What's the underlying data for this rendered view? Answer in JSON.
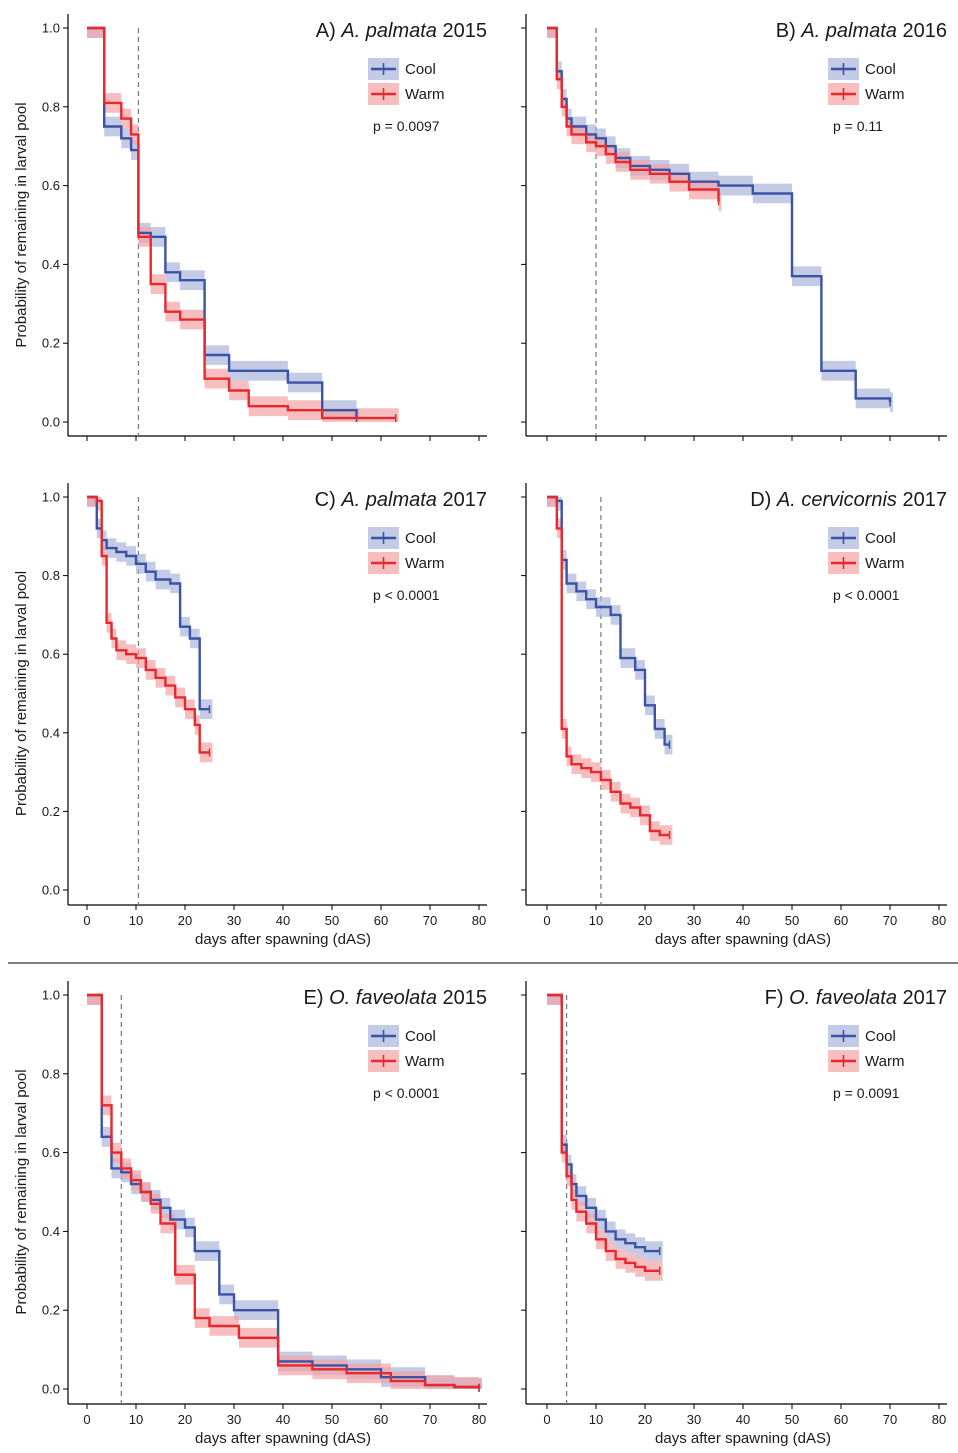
{
  "page": {
    "divider": true
  },
  "colors": {
    "cool": "#3a53a4",
    "warm": "#e8282c",
    "cool_band": "#aab5dc",
    "warm_band": "#f4a3a5",
    "refline": "#777777"
  },
  "axes_text": {
    "ylabel": "Probability of remaining in larval pool",
    "xlabel": "days after spawning (dAS)",
    "yticks": [
      "0.0",
      "0.2",
      "0.4",
      "0.6",
      "0.8",
      "1.0"
    ],
    "xticks": [
      "0",
      "10",
      "20",
      "30",
      "40",
      "50",
      "60",
      "70",
      "80"
    ]
  },
  "chart_data": [
    {
      "type": "line",
      "step": true,
      "title_prefix": "A)",
      "species": "A. palmata",
      "year": "2015",
      "legend": [
        "Cool",
        "Warm"
      ],
      "pvalue": "p = 0.0097",
      "xlim": [
        0,
        80
      ],
      "ylim": [
        0,
        1
      ],
      "vline": 10.5,
      "ylabel_shown": true,
      "xaxis_labels_shown": false,
      "series": [
        {
          "name": "Cool",
          "x": [
            0,
            3.5,
            7,
            9,
            10.5,
            13,
            16,
            19,
            24,
            29,
            41,
            48,
            55
          ],
          "y": [
            1.0,
            0.75,
            0.72,
            0.69,
            0.48,
            0.47,
            0.38,
            0.36,
            0.17,
            0.13,
            0.1,
            0.03,
            0.01
          ],
          "band": 0.025
        },
        {
          "name": "Warm",
          "x": [
            0,
            3.5,
            7,
            9,
            10.5,
            13,
            16,
            19,
            24,
            29,
            33,
            41,
            48,
            63
          ],
          "y": [
            1.0,
            0.81,
            0.77,
            0.73,
            0.47,
            0.35,
            0.28,
            0.26,
            0.11,
            0.08,
            0.04,
            0.03,
            0.01,
            0.01
          ],
          "band": 0.025
        }
      ]
    },
    {
      "type": "line",
      "step": true,
      "title_prefix": "B)",
      "species": "A. palmata",
      "year": "2016",
      "legend": [
        "Cool",
        "Warm"
      ],
      "pvalue": "p = 0.11",
      "xlim": [
        0,
        80
      ],
      "ylim": [
        0,
        1
      ],
      "vline": 10,
      "ylabel_shown": false,
      "xaxis_labels_shown": false,
      "series": [
        {
          "name": "Cool",
          "x": [
            0,
            2,
            3,
            4,
            5,
            8,
            10,
            12,
            14,
            17,
            21,
            25,
            29,
            35,
            42,
            50,
            56,
            63,
            70
          ],
          "y": [
            1.0,
            0.89,
            0.82,
            0.77,
            0.75,
            0.73,
            0.72,
            0.7,
            0.67,
            0.65,
            0.64,
            0.63,
            0.61,
            0.6,
            0.58,
            0.37,
            0.13,
            0.06,
            0.05
          ],
          "band": 0.025
        },
        {
          "name": "Warm",
          "x": [
            0,
            2,
            3,
            4,
            5,
            8,
            10,
            12,
            14,
            17,
            21,
            25,
            29,
            35
          ],
          "y": [
            1.0,
            0.87,
            0.8,
            0.75,
            0.73,
            0.71,
            0.7,
            0.68,
            0.66,
            0.64,
            0.63,
            0.61,
            0.59,
            0.56
          ],
          "band": 0.025
        }
      ]
    },
    {
      "type": "line",
      "step": true,
      "title_prefix": "C)",
      "species": "A. palmata",
      "year": "2017",
      "legend": [
        "Cool",
        "Warm"
      ],
      "pvalue": "p < 0.0001",
      "xlim": [
        0,
        80
      ],
      "ylim": [
        0,
        1
      ],
      "vline": 10.5,
      "ylabel_shown": true,
      "xaxis_labels_shown": true,
      "series": [
        {
          "name": "Cool",
          "x": [
            0,
            2,
            3,
            4,
            6,
            8,
            10,
            12,
            14,
            17,
            19,
            21,
            23,
            25
          ],
          "y": [
            1.0,
            0.92,
            0.89,
            0.87,
            0.86,
            0.85,
            0.83,
            0.81,
            0.79,
            0.78,
            0.67,
            0.64,
            0.46,
            0.46
          ],
          "band": 0.025
        },
        {
          "name": "Warm",
          "x": [
            0,
            2,
            3,
            4,
            5,
            6,
            8,
            10,
            12,
            14,
            16,
            18,
            20,
            22,
            23,
            25
          ],
          "y": [
            1.0,
            0.99,
            0.85,
            0.68,
            0.64,
            0.61,
            0.6,
            0.59,
            0.56,
            0.54,
            0.52,
            0.49,
            0.46,
            0.42,
            0.35,
            0.35
          ],
          "band": 0.025
        }
      ]
    },
    {
      "type": "line",
      "step": true,
      "title_prefix": "D)",
      "species": "A. cervicornis",
      "year": "2017",
      "legend": [
        "Cool",
        "Warm"
      ],
      "pvalue": "p < 0.0001",
      "xlim": [
        0,
        80
      ],
      "ylim": [
        0,
        1
      ],
      "vline": 11,
      "ylabel_shown": false,
      "xaxis_labels_shown": true,
      "series": [
        {
          "name": "Cool",
          "x": [
            0,
            2,
            3,
            4,
            6,
            8,
            10,
            13,
            15,
            18,
            20,
            22,
            24,
            25
          ],
          "y": [
            1.0,
            0.99,
            0.84,
            0.78,
            0.76,
            0.74,
            0.72,
            0.7,
            0.59,
            0.56,
            0.47,
            0.41,
            0.37,
            0.37
          ],
          "band": 0.025
        },
        {
          "name": "Warm",
          "x": [
            0,
            2,
            3,
            4,
            5,
            7,
            9,
            11,
            13,
            15,
            17,
            19,
            21,
            23,
            25
          ],
          "y": [
            1.0,
            0.92,
            0.41,
            0.34,
            0.32,
            0.31,
            0.3,
            0.28,
            0.25,
            0.22,
            0.21,
            0.19,
            0.15,
            0.14,
            0.14
          ],
          "band": 0.025
        }
      ]
    },
    {
      "type": "line",
      "step": true,
      "title_prefix": "E)",
      "species": "O. faveolata",
      "year": "2015",
      "legend": [
        "Cool",
        "Warm"
      ],
      "pvalue": "p < 0.0001",
      "xlim": [
        0,
        80
      ],
      "ylim": [
        0,
        1
      ],
      "vline": 7,
      "ylabel_shown": true,
      "xaxis_labels_shown": true,
      "series": [
        {
          "name": "Cool",
          "x": [
            0,
            3,
            5,
            7,
            9,
            11,
            13,
            15,
            17,
            20,
            22,
            27,
            30,
            39,
            46,
            53,
            60,
            69,
            75,
            80
          ],
          "y": [
            1.0,
            0.64,
            0.56,
            0.55,
            0.52,
            0.5,
            0.48,
            0.46,
            0.43,
            0.41,
            0.35,
            0.24,
            0.2,
            0.07,
            0.06,
            0.05,
            0.03,
            0.01,
            0.005,
            0.003
          ],
          "band": 0.025
        },
        {
          "name": "Warm",
          "x": [
            0,
            3,
            5,
            7,
            9,
            11,
            13,
            15,
            18,
            22,
            25,
            31,
            39,
            46,
            53,
            62,
            69,
            75,
            80
          ],
          "y": [
            1.0,
            0.72,
            0.6,
            0.56,
            0.53,
            0.5,
            0.47,
            0.42,
            0.29,
            0.18,
            0.16,
            0.13,
            0.06,
            0.05,
            0.04,
            0.02,
            0.01,
            0.005,
            0.003
          ],
          "band": 0.025
        }
      ]
    },
    {
      "type": "line",
      "step": true,
      "title_prefix": "F)",
      "species": "O. faveolata",
      "year": "2017",
      "legend": [
        "Cool",
        "Warm"
      ],
      "pvalue": "p = 0.0091",
      "xlim": [
        0,
        80
      ],
      "ylim": [
        0,
        1
      ],
      "vline": 4,
      "ylabel_shown": false,
      "xaxis_labels_shown": true,
      "series": [
        {
          "name": "Cool",
          "x": [
            0,
            3,
            4,
            5,
            6,
            8,
            10,
            12,
            14,
            16,
            18,
            20,
            23
          ],
          "y": [
            1.0,
            0.62,
            0.57,
            0.52,
            0.49,
            0.46,
            0.43,
            0.4,
            0.38,
            0.37,
            0.36,
            0.35,
            0.35
          ],
          "band": 0.025
        },
        {
          "name": "Warm",
          "x": [
            0,
            3,
            4,
            5,
            6,
            8,
            10,
            12,
            14,
            16,
            18,
            20,
            23
          ],
          "y": [
            1.0,
            0.6,
            0.54,
            0.48,
            0.45,
            0.42,
            0.38,
            0.35,
            0.33,
            0.32,
            0.31,
            0.3,
            0.3
          ],
          "band": 0.025
        }
      ]
    }
  ]
}
